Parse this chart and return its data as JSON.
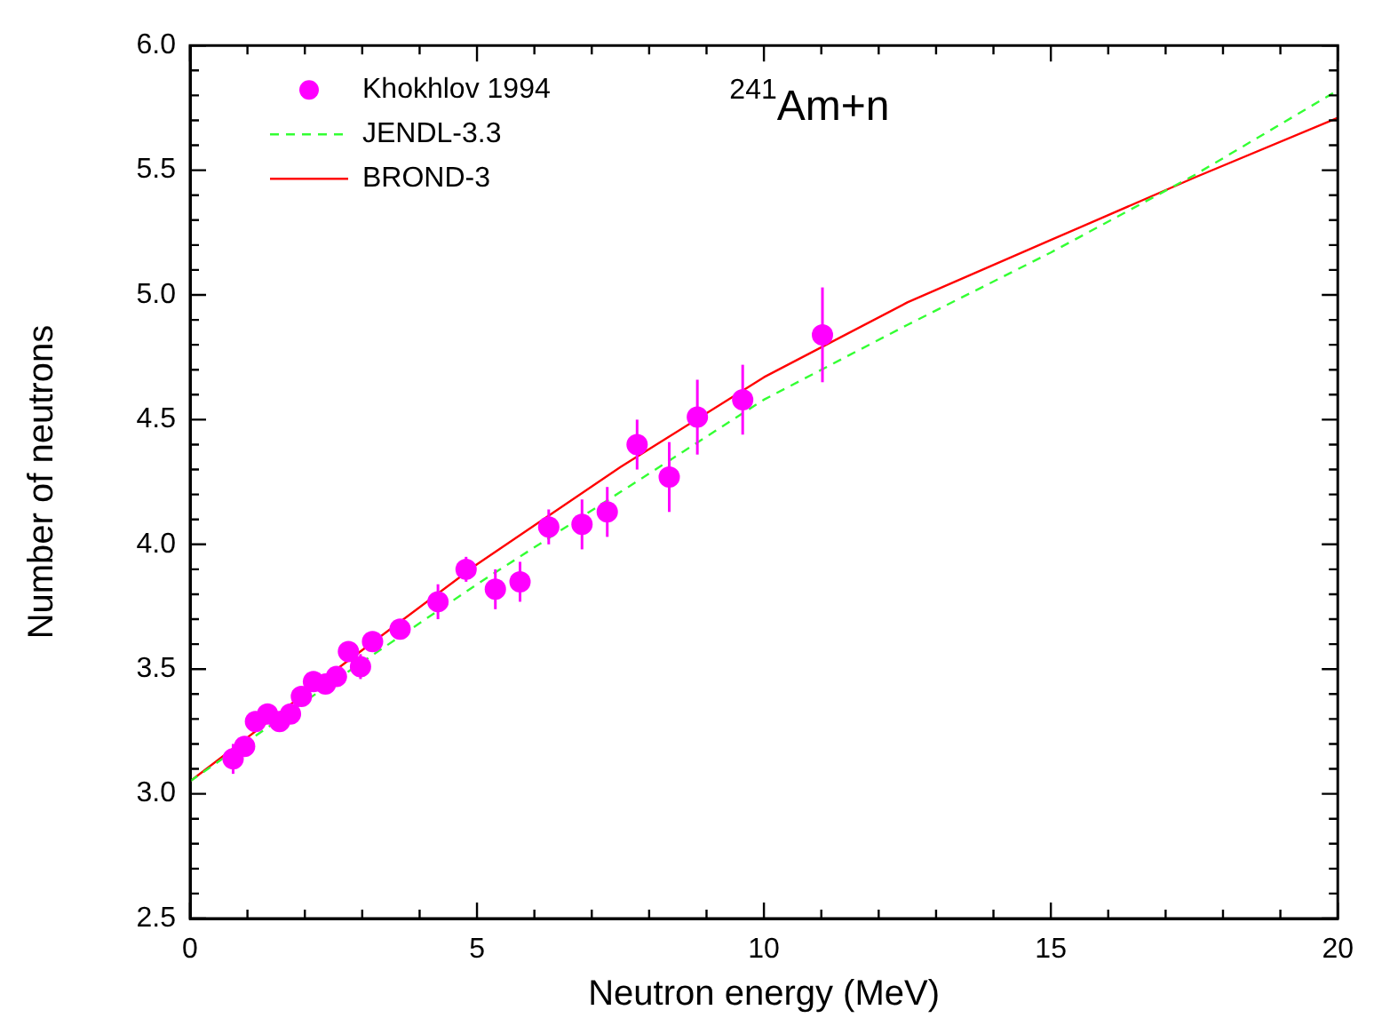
{
  "chart_data": {
    "type": "scatter",
    "xlabel": "Neutron energy (MeV)",
    "ylabel": "Number of neutrons",
    "annotations": [
      "$^{241}$Am+n"
    ],
    "xlim": [
      0,
      20
    ],
    "ylim": [
      2.5,
      6.0
    ],
    "xticks": [
      0,
      {
        "value": 1,
        "label": null
      },
      {
        "value": 2,
        "label": null
      },
      {
        "value": 3,
        "label": null
      },
      {
        "value": 4,
        "label": null
      },
      5,
      {
        "value": 6,
        "label": null
      },
      {
        "value": 7,
        "label": null
      },
      {
        "value": 8,
        "label": null
      },
      {
        "value": 9,
        "label": null
      },
      10,
      {
        "value": 11,
        "label": null
      },
      {
        "value": 12,
        "label": null
      },
      {
        "value": 13,
        "label": null
      },
      {
        "value": 14,
        "label": null
      },
      15,
      {
        "value": 16,
        "label": null
      },
      {
        "value": 17,
        "label": null
      },
      {
        "value": 18,
        "label": null
      },
      {
        "value": 19,
        "label": null
      },
      20
    ],
    "yticks": [
      2.5,
      {
        "value": 2.6,
        "label": null
      },
      {
        "value": 2.7,
        "label": null
      },
      {
        "value": 2.8,
        "label": null
      },
      {
        "value": 2.9,
        "label": null
      },
      {
        "value": 3.0,
        "label": "3.0"
      },
      {
        "value": 3.1,
        "label": null
      },
      {
        "value": 3.2,
        "label": null
      },
      {
        "value": 3.3,
        "label": null
      },
      {
        "value": 3.4,
        "label": null
      },
      3.5,
      {
        "value": 3.6,
        "label": null
      },
      {
        "value": 3.7,
        "label": null
      },
      {
        "value": 3.8,
        "label": null
      },
      {
        "value": 3.9,
        "label": null
      },
      {
        "value": 4.0,
        "label": "4.0"
      },
      {
        "value": 4.1,
        "label": null
      },
      {
        "value": 4.2,
        "label": null
      },
      {
        "value": 4.3,
        "label": null
      },
      {
        "value": 4.4,
        "label": null
      },
      4.5,
      {
        "value": 4.6,
        "label": null
      },
      {
        "value": 4.7,
        "label": null
      },
      {
        "value": 4.8,
        "label": null
      },
      {
        "value": 4.9,
        "label": null
      },
      {
        "value": 5.0,
        "label": "5.0"
      },
      {
        "value": 5.1,
        "label": null
      },
      {
        "value": 5.2,
        "label": null
      },
      {
        "value": 5.3,
        "label": null
      },
      {
        "value": 5.4,
        "label": null
      },
      5.5,
      {
        "value": 5.6,
        "label": null
      },
      {
        "value": 5.7,
        "label": null
      },
      {
        "value": 5.8,
        "label": null
      },
      {
        "value": 5.9,
        "label": null
      },
      {
        "value": 6.0,
        "label": "6.0"
      }
    ],
    "grid": false,
    "legend": "top left",
    "series": [
      {
        "name": "Khokhlov 1994",
        "marker": "circle",
        "color": "#ff00ff",
        "x": [
          0.75,
          0.95,
          1.14,
          1.35,
          1.56,
          1.75,
          1.94,
          2.15,
          2.36,
          2.55,
          2.76,
          2.97,
          3.18,
          3.66,
          4.32,
          4.81,
          5.32,
          5.75,
          6.25,
          6.83,
          7.27,
          7.79,
          8.35,
          8.84,
          9.63,
          11.02
        ],
        "values": [
          3.14,
          3.19,
          3.29,
          3.32,
          3.29,
          3.32,
          3.39,
          3.45,
          3.44,
          3.47,
          3.57,
          3.51,
          3.61,
          3.66,
          3.77,
          3.9,
          3.82,
          3.85,
          4.07,
          4.08,
          4.13,
          4.4,
          4.27,
          4.51,
          4.58,
          4.84
        ],
        "errors": [
          0.06,
          0.03,
          0.03,
          0.03,
          0.03,
          0.03,
          0.03,
          0.03,
          0.03,
          0.03,
          0.03,
          0.05,
          0.04,
          0.03,
          0.07,
          0.05,
          0.08,
          0.08,
          0.07,
          0.1,
          0.1,
          0.1,
          0.14,
          0.15,
          0.14,
          0.19
        ]
      },
      {
        "name": "JENDL-3.3",
        "type": "line",
        "line_style": "dashed",
        "marker": "none",
        "color": "#33ff33",
        "x": [
          0,
          2.5,
          5,
          7.5,
          10,
          12.5,
          15,
          17.5,
          20,
          20
        ],
        "values": [
          3.05,
          3.45,
          3.84,
          4.21,
          4.58,
          4.88,
          5.17,
          5.48,
          5.82,
          4.75
        ]
      },
      {
        "name": "BROND-3",
        "type": "line",
        "line_style": "solid",
        "marker": "none",
        "color": "#ff0000",
        "x": [
          0,
          2.5,
          5,
          7.5,
          10,
          12.5,
          15,
          17.5,
          20
        ],
        "values": [
          3.05,
          3.49,
          3.92,
          4.31,
          4.67,
          4.97,
          5.22,
          5.47,
          5.71
        ]
      }
    ]
  }
}
